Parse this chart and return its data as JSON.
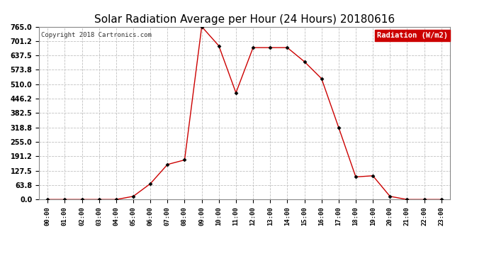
{
  "title": "Solar Radiation Average per Hour (24 Hours) 20180616",
  "copyright": "Copyright 2018 Cartronics.com",
  "legend_label": "Radiation (W/m2)",
  "hours": [
    "00:00",
    "01:00",
    "02:00",
    "03:00",
    "04:00",
    "05:00",
    "06:00",
    "07:00",
    "08:00",
    "09:00",
    "10:00",
    "11:00",
    "12:00",
    "13:00",
    "14:00",
    "15:00",
    "16:00",
    "17:00",
    "18:00",
    "19:00",
    "20:00",
    "21:00",
    "22:00",
    "23:00"
  ],
  "values": [
    0.0,
    0.0,
    0.0,
    0.0,
    0.0,
    14.0,
    70.0,
    155.0,
    175.0,
    765.0,
    680.0,
    472.0,
    672.0,
    672.0,
    672.0,
    610.0,
    535.0,
    318.8,
    100.0,
    105.0,
    14.0,
    0.0,
    0.0,
    0.0
  ],
  "line_color": "#cc0000",
  "marker_color": "#000000",
  "grid_color": "#c0c0c0",
  "background_color": "#ffffff",
  "plot_bg_color": "#ffffff",
  "title_fontsize": 11,
  "yticks": [
    0.0,
    63.8,
    127.5,
    191.2,
    255.0,
    318.8,
    382.5,
    446.2,
    510.0,
    573.8,
    637.5,
    701.2,
    765.0
  ],
  "ylim": [
    0.0,
    765.0
  ],
  "legend_bg": "#cc0000",
  "legend_text_color": "#ffffff",
  "fig_width": 6.9,
  "fig_height": 3.75,
  "dpi": 100
}
